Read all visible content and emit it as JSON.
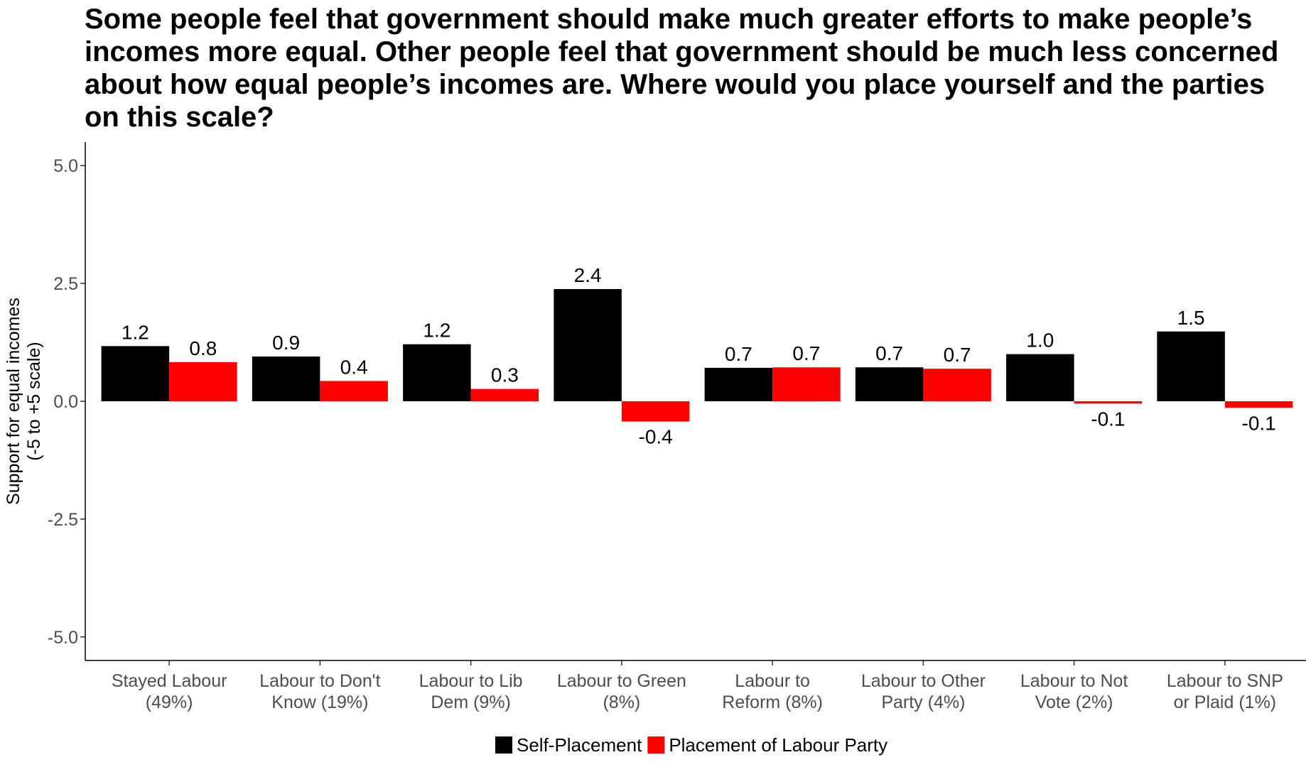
{
  "chart_data": {
    "type": "bar",
    "title": "Some people feel that government should make much greater efforts to make people’s incomes more equal. Other people feel that government should be much less concerned about how equal people’s incomes are. Where would you place yourself and the parties on this scale?",
    "xlabel": "",
    "ylabel_lines": [
      "Support for equal incomes",
      "(-5 to +5 scale)"
    ],
    "ylim": [
      -5.5,
      5.5
    ],
    "yticks": [
      5.0,
      2.5,
      0.0,
      -2.5,
      -5.0
    ],
    "ytick_labels": [
      "5.0",
      "2.5",
      "0.0",
      "-2.5",
      "-5.0"
    ],
    "categories": [
      [
        "Stayed Labour",
        "(49%)"
      ],
      [
        "Labour to Don't",
        "Know (19%)"
      ],
      [
        "Labour to Lib",
        "Dem (9%)"
      ],
      [
        "Labour to Green",
        "(8%)"
      ],
      [
        "Labour to",
        "Reform (8%)"
      ],
      [
        "Labour to Other",
        "Party (4%)"
      ],
      [
        "Labour to Not",
        "Vote (2%)"
      ],
      [
        "Labour to SNP",
        "or Plaid (1%)"
      ]
    ],
    "series": [
      {
        "name": "Self-Placement",
        "color": "#000000",
        "values": [
          1.17,
          0.95,
          1.21,
          2.38,
          0.71,
          0.72,
          1.0,
          1.48
        ],
        "labels": [
          "1.2",
          "0.9",
          "1.2",
          "2.4",
          "0.7",
          "0.7",
          "1.0",
          "1.5"
        ]
      },
      {
        "name": "Placement of Labour Party",
        "color": "#ff0000",
        "values": [
          0.83,
          0.43,
          0.26,
          -0.43,
          0.72,
          0.69,
          -0.05,
          -0.14
        ],
        "labels": [
          "0.8",
          "0.4",
          "0.3",
          "-0.4",
          "0.7",
          "0.7",
          "-0.1",
          "-0.1"
        ]
      }
    ],
    "grid": false,
    "legend": "bottom"
  }
}
